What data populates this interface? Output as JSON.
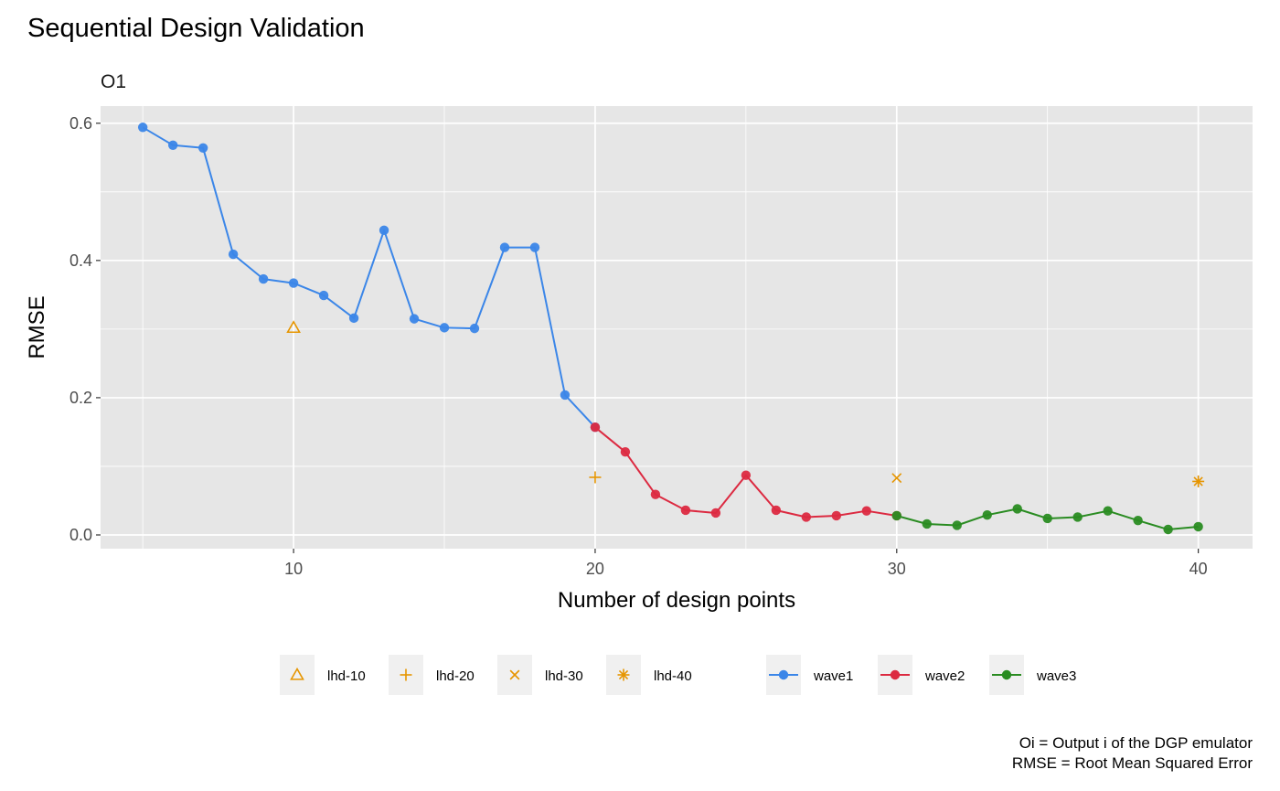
{
  "chart_data": {
    "type": "line",
    "title": "Sequential Design Validation",
    "facet_label": "O1",
    "xlabel": "Number of design points",
    "ylabel": "RMSE",
    "xlim": [
      3.6,
      41.8
    ],
    "ylim": [
      -0.02,
      0.625
    ],
    "x_ticks": [
      10,
      20,
      30,
      40
    ],
    "x_tick_labels": [
      "10",
      "20",
      "30",
      "40"
    ],
    "y_ticks": [
      0.0,
      0.2,
      0.4,
      0.6
    ],
    "y_tick_labels": [
      "0.0",
      "0.2",
      "0.4",
      "0.6"
    ],
    "grid": true,
    "legend_position": "bottom",
    "series": [
      {
        "name": "wave1",
        "color": "#3b86e8",
        "x": [
          5,
          6,
          7,
          8,
          9,
          10,
          11,
          12,
          13,
          14,
          15,
          16,
          17,
          18,
          19,
          20
        ],
        "y": [
          0.594,
          0.568,
          0.564,
          0.409,
          0.373,
          0.367,
          0.349,
          0.316,
          0.444,
          0.315,
          0.302,
          0.301,
          0.419,
          0.419,
          0.204,
          0.157
        ]
      },
      {
        "name": "wave2",
        "color": "#dc2a41",
        "x": [
          20,
          21,
          22,
          23,
          24,
          25,
          26,
          27,
          28,
          29,
          30
        ],
        "y": [
          0.157,
          0.121,
          0.059,
          0.036,
          0.032,
          0.087,
          0.036,
          0.026,
          0.028,
          0.035,
          0.028
        ]
      },
      {
        "name": "wave3",
        "color": "#2a8c22",
        "x": [
          30,
          31,
          32,
          33,
          34,
          35,
          36,
          37,
          38,
          39,
          40
        ],
        "y": [
          0.028,
          0.016,
          0.014,
          0.029,
          0.038,
          0.024,
          0.026,
          0.035,
          0.021,
          0.008,
          0.012
        ]
      }
    ],
    "reference_points": [
      {
        "name": "lhd-10",
        "x": 10,
        "y": 0.302,
        "shape": "triangle-open",
        "color": "#e69500"
      },
      {
        "name": "lhd-20",
        "x": 20,
        "y": 0.084,
        "shape": "plus",
        "color": "#e69500"
      },
      {
        "name": "lhd-30",
        "x": 30,
        "y": 0.083,
        "shape": "cross",
        "color": "#e69500"
      },
      {
        "name": "lhd-40",
        "x": 40,
        "y": 0.078,
        "shape": "asterisk",
        "color": "#e69500"
      }
    ],
    "caption_lines": [
      "Oi = Output i of the DGP emulator",
      "RMSE = Root Mean Squared Error"
    ]
  }
}
